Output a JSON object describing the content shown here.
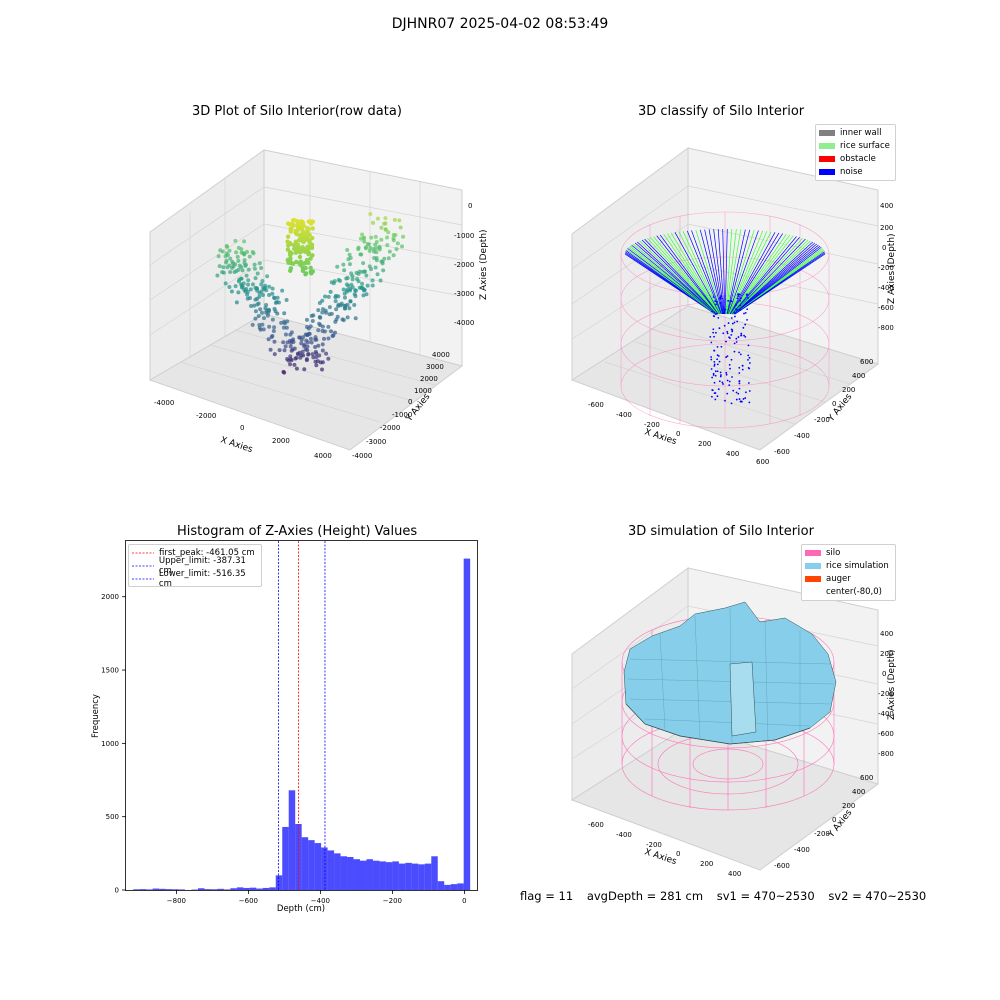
{
  "figure_title": "DJHNR07 2025-04-02 08:53:49",
  "panels": {
    "raw": {
      "title": "3D Plot of Silo Interior(row data)",
      "xlabel": "X Axies",
      "ylabel": "Y Axies",
      "zlabel": "Z Axies (Depth)",
      "xticks": [
        "-4000",
        "-2000",
        "0",
        "2000",
        "4000"
      ],
      "yticks": [
        "-4000",
        "-3000",
        "-2000",
        "-1000",
        "0",
        "1000",
        "2000",
        "3000",
        "4000"
      ],
      "zticks": [
        "0",
        "-1000",
        "-2000",
        "-3000",
        "-4000"
      ]
    },
    "classify": {
      "title": "3D classify of Silo Interior",
      "xlabel": "X Axies",
      "ylabel": "Y Axies",
      "zlabel": "Z Axies (Depth)",
      "xticks": [
        "-600",
        "-400",
        "-200",
        "0",
        "200",
        "400",
        "600"
      ],
      "yticks": [
        "-600",
        "-400",
        "-200",
        "0",
        "200",
        "400",
        "600"
      ],
      "zticks": [
        "400",
        "200",
        "0",
        "-200",
        "-400",
        "-600",
        "-800"
      ],
      "legend": [
        {
          "label": "inner wall",
          "color": "#808080"
        },
        {
          "label": "rice surface",
          "color": "#90ee90"
        },
        {
          "label": "obstacle",
          "color": "#ff0000"
        },
        {
          "label": "noise",
          "color": "#0000ff"
        }
      ]
    },
    "simulation": {
      "title": "3D simulation of Silo Interior",
      "xlabel": "X Axies",
      "ylabel": "Y Axies",
      "zlabel": "Z Axies (Depth)",
      "xticks": [
        "-600",
        "-400",
        "-200",
        "0",
        "200",
        "400"
      ],
      "yticks": [
        "-600",
        "-400",
        "-200",
        "0",
        "200",
        "400",
        "600"
      ],
      "zticks": [
        "400",
        "200",
        "0",
        "-200",
        "-400",
        "-600",
        "-800"
      ],
      "legend": [
        {
          "label": "silo",
          "color": "#ff69b4"
        },
        {
          "label": "rice simulation",
          "color": "#87ceeb"
        },
        {
          "label": "auger",
          "color": "#ff4500"
        },
        {
          "label": "center(-80,0)",
          "color": "#ffffff"
        }
      ]
    }
  },
  "chart_data": {
    "type": "bar",
    "title": "Histogram of Z-Axies (Height) Values",
    "xlabel": "Depth (cm)",
    "ylabel": "Frequency",
    "xlim": [
      -940,
      35
    ],
    "ylim": [
      0,
      2380
    ],
    "xticks": [
      -800,
      -600,
      -400,
      -200,
      0
    ],
    "yticks": [
      0,
      500,
      1000,
      1500,
      2000
    ],
    "bar_color": "#0000ff",
    "bin_edges": [
      -920,
      -902,
      -884,
      -866,
      -848,
      -830,
      -812,
      -794,
      -776,
      -758,
      -740,
      -722,
      -704,
      -686,
      -668,
      -650,
      -632,
      -614,
      -596,
      -578,
      -560,
      -542,
      -524,
      -506,
      -488,
      -470,
      -452,
      -434,
      -416,
      -398,
      -380,
      -362,
      -344,
      -326,
      -308,
      -290,
      -272,
      -254,
      -236,
      -218,
      -200,
      -182,
      -164,
      -146,
      -128,
      -110,
      -92,
      -74,
      -56,
      -38,
      -20,
      -2,
      16
    ],
    "counts": [
      5,
      6,
      4,
      10,
      8,
      6,
      5,
      4,
      0,
      3,
      12,
      6,
      5,
      8,
      4,
      12,
      18,
      14,
      16,
      10,
      14,
      18,
      100,
      430,
      680,
      450,
      360,
      340,
      320,
      290,
      270,
      250,
      230,
      225,
      210,
      200,
      210,
      200,
      195,
      190,
      195,
      180,
      185,
      180,
      175,
      180,
      230,
      60,
      35,
      40,
      45,
      2260
    ],
    "vlines": [
      {
        "label": "first_peak: -461.05 cm",
        "x": -461.05,
        "color": "#ff0000"
      },
      {
        "label": "Upper_limit: -387.31 cm",
        "x": -387.31,
        "color": "#0000ff"
      },
      {
        "label": "Lower_limit: -516.35 cm",
        "x": -516.35,
        "color": "#0000ff"
      }
    ],
    "legend_loc": "upper left"
  },
  "footer": {
    "flag": "flag = 11",
    "avg": "avgDepth = 281 cm",
    "sv1": "sv1 = 470~2530",
    "sv2": "sv2 = 470~2530"
  }
}
